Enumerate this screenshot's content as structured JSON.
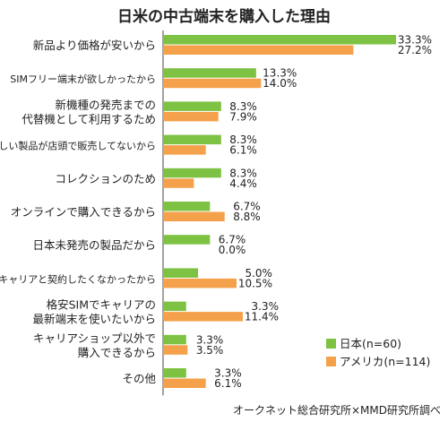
{
  "chart_data": {
    "type": "bar",
    "orientation": "horizontal",
    "title": "日米の中古端末を購入した理由",
    "source": "オークネット総合研究所×MMD研究所調べ",
    "unit": "%",
    "grid": false,
    "legend_position": "bottom-right",
    "xlim": [
      0,
      35
    ],
    "categories": [
      [
        "新品より価格が安いから"
      ],
      [
        "SIMフリー端末が欲しかったから"
      ],
      [
        "新機種の発売までの",
        "代替機として利用するため"
      ],
      [
        "欲しい製品が店頭で販売してないから"
      ],
      [
        "コレクションのため"
      ],
      [
        "オンラインで購入できるから"
      ],
      [
        "日本未発売の製品だから"
      ],
      [
        "キャリアと契約したくなかったから"
      ],
      [
        "格安SIMでキャリアの",
        "最新端末を使いたいから"
      ],
      [
        "キャリアショップ以外で",
        "購入できるから"
      ],
      [
        "その他"
      ]
    ],
    "series": [
      {
        "name": "日本(n=60)",
        "color": "#7dc242",
        "values": [
          33.3,
          13.3,
          8.3,
          8.3,
          8.3,
          6.7,
          6.7,
          5.0,
          3.3,
          3.3,
          3.3
        ],
        "labels": [
          "33.3%",
          "13.3%",
          "8.3%",
          "8.3%",
          "8.3%",
          "6.7%",
          "6.7%",
          "5.0%",
          "3.3%",
          "3.3%",
          "3.3%"
        ]
      },
      {
        "name": "アメリカ(n=114)",
        "color": "#f5a04a",
        "values": [
          27.2,
          14.0,
          7.9,
          6.1,
          4.4,
          8.8,
          0.0,
          10.5,
          11.4,
          3.5,
          6.1
        ],
        "labels": [
          "27.2%",
          "14.0%",
          "7.9%",
          "6.1%",
          "4.4%",
          "8.8%",
          "0.0%",
          "10.5%",
          "11.4%",
          "3.5%",
          "6.1%"
        ]
      }
    ]
  }
}
